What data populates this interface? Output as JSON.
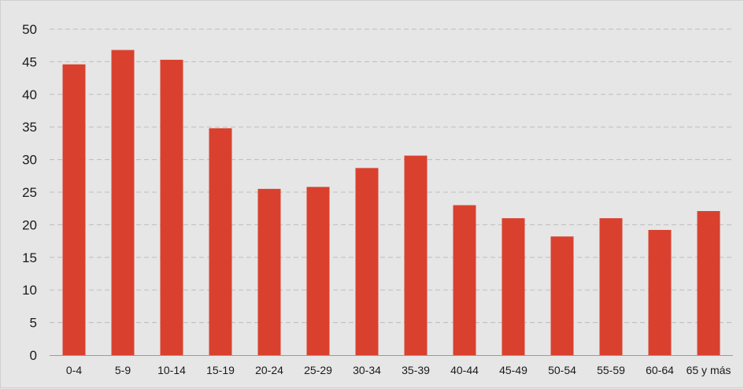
{
  "chart_data": {
    "type": "bar",
    "categories": [
      "0-4",
      "5-9",
      "10-14",
      "15-19",
      "20-24",
      "25-29",
      "30-34",
      "35-39",
      "40-44",
      "45-49",
      "50-54",
      "55-59",
      "60-64",
      "65 y más"
    ],
    "values": [
      44.6,
      46.8,
      45.3,
      34.8,
      25.5,
      25.8,
      28.7,
      30.6,
      23.0,
      21.0,
      18.2,
      21.0,
      19.2,
      22.1
    ],
    "ylim": [
      0,
      50
    ],
    "yticks": [
      0,
      5,
      10,
      15,
      20,
      25,
      30,
      35,
      40,
      45,
      50
    ],
    "grid": true,
    "grid_style": "dashed horizontal",
    "legend": false,
    "colors": {
      "bar": "#d9412e",
      "background": "#e6e6e6",
      "grid": "#bdbdbd",
      "axis": "#9a9a9a",
      "text": "#1a1a1a"
    }
  }
}
